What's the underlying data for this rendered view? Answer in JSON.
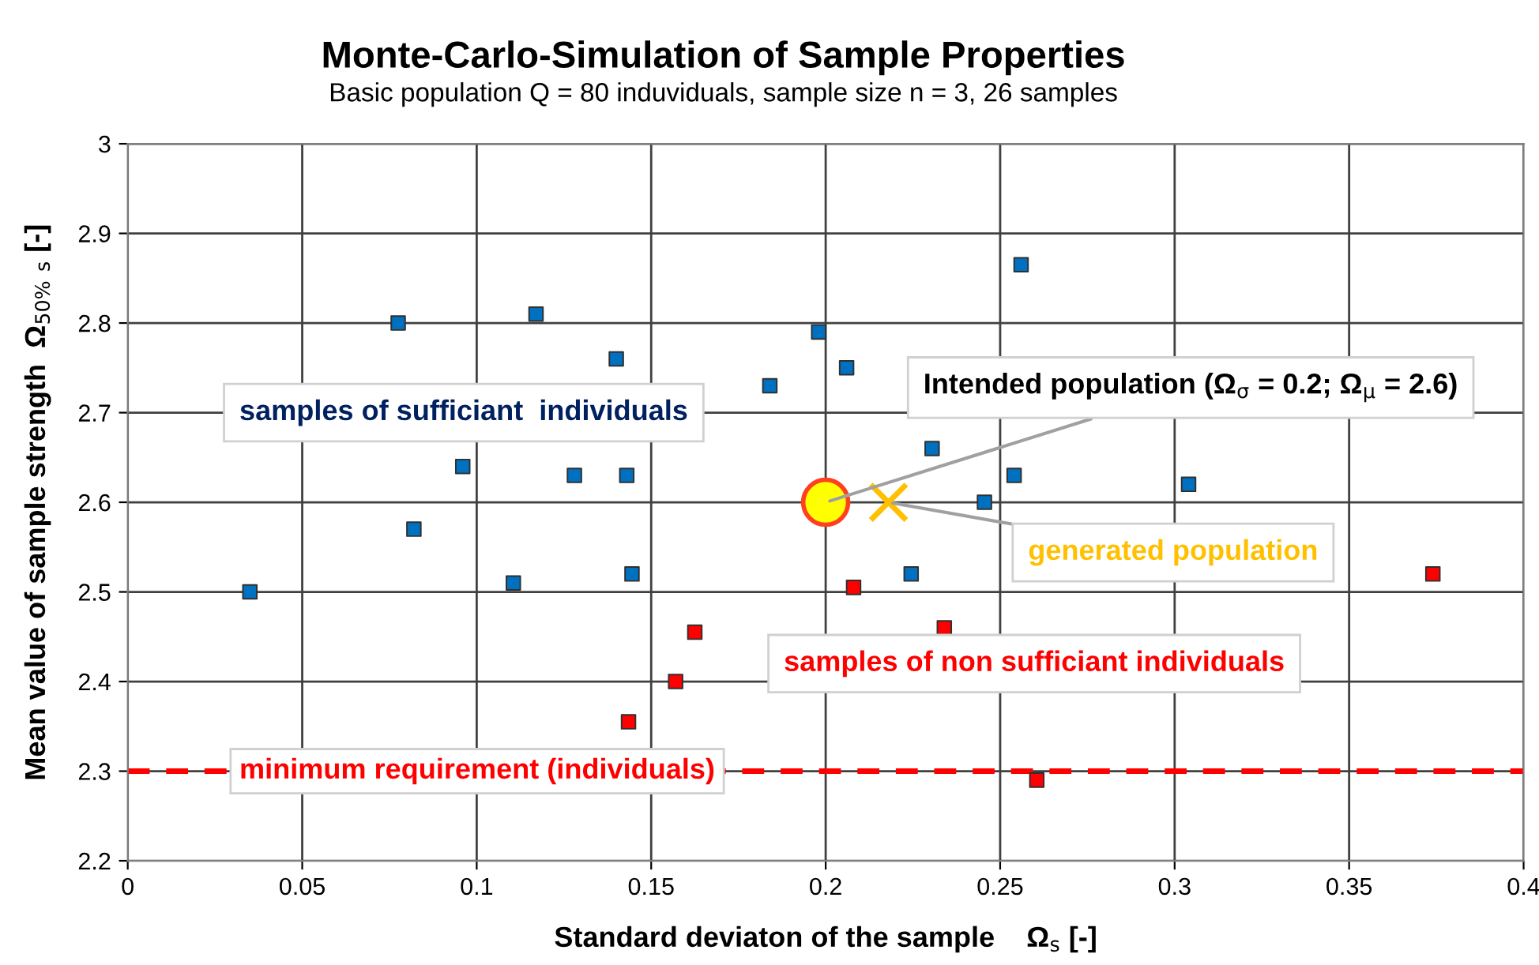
{
  "chart_data": {
    "type": "scatter",
    "title": "Monte-Carlo-Simulation of Sample Properties",
    "subtitle": "Basic population Q = 80 induviduals, sample size n = 3, 26 samples",
    "xlabel": "Standard deviaton of the sample    Ω$_{s}$ [-]",
    "ylabel": "Mean value of sample strength  Ω$_{50%}$ $_{s}$ [-]",
    "xlim": [
      0,
      0.4
    ],
    "ylim": [
      2.2,
      3
    ],
    "xticks": [
      0,
      0.05,
      0.1,
      0.15,
      0.2,
      0.25,
      0.3,
      0.35,
      0.4
    ],
    "yticks": [
      2.2,
      2.3,
      2.4,
      2.5,
      2.6,
      2.7,
      2.8,
      2.9,
      3
    ],
    "grid": true,
    "series": [
      {
        "color": "#0070c0",
        "marker": "square",
        "x": [
          0.035,
          0.0775,
          0.082,
          0.096,
          0.1105,
          0.117,
          0.128,
          0.14,
          0.143,
          0.1445,
          0.184,
          0.198,
          0.206,
          0.2245,
          0.2305,
          0.2455,
          0.254,
          0.256,
          0.304
        ],
        "values": [
          2.5,
          2.8,
          2.57,
          2.64,
          2.51,
          2.81,
          2.63,
          2.76,
          2.63,
          2.52,
          2.73,
          2.79,
          2.75,
          2.52,
          2.66,
          2.6,
          2.63,
          2.865,
          2.62
        ]
      },
      {
        "color": "#ff0000",
        "marker": "square",
        "x": [
          0.1435,
          0.157,
          0.1625,
          0.208,
          0.234,
          0.2605,
          0.374
        ],
        "values": [
          2.355,
          2.4,
          2.455,
          2.505,
          2.46,
          2.29,
          2.52
        ]
      },
      {
        "color": "#ffff00",
        "marker": "circle",
        "x": [
          0.2
        ],
        "values": [
          2.6
        ]
      },
      {
        "color": "#ffc000",
        "marker": "cross",
        "x": [
          0.218
        ],
        "values": [
          2.6
        ]
      }
    ],
    "ref_lines": [
      {
        "axis": "y",
        "value": 2.3,
        "label": "minimum requirement (individuals)",
        "color": "#ff0000",
        "line_style": "dashed"
      }
    ],
    "annotations": [
      "samples of sufficiant  individuals",
      "samples of non sufficiant individuals",
      {
        "text": "Intended population (Ω$_{σ}$ = 0.2; Ω$_{μ}$ = 2.6)",
        "x": 0.2,
        "y": 2.6
      },
      {
        "text": "generated population",
        "x": 0.218,
        "y": 2.6
      }
    ]
  }
}
